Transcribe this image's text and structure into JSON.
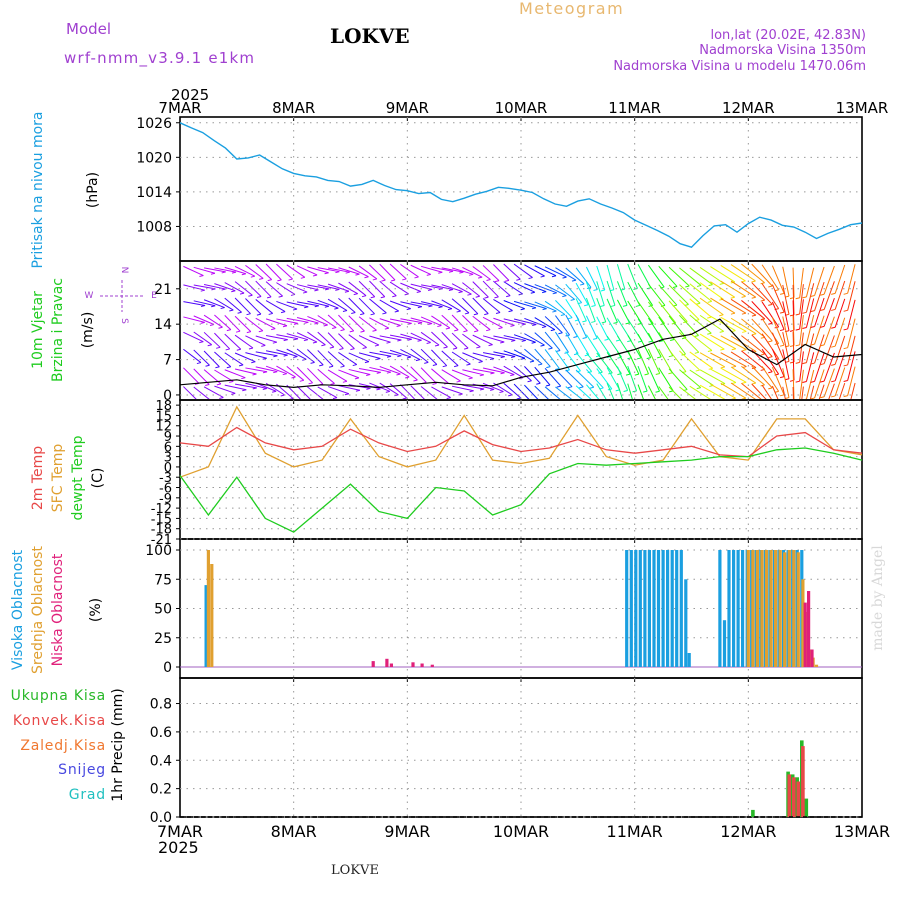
{
  "header": {
    "model_label": "Model",
    "model_name": "wrf-nmm_v3.9.1 e1km",
    "title": "LOKVE",
    "subtitle": "Meteogram",
    "coords": "lon,lat (20.02E, 42.83N)",
    "elevation": "Nadmorska Visina 1350m",
    "model_elevation": "Nadmorska Visina u modelu 1470.06m",
    "watermark": "made by Angel",
    "footer_station": "LOKVE"
  },
  "time_axis": {
    "year": "2025",
    "ticks": [
      "7MAR",
      "8MAR",
      "9MAR",
      "10MAR",
      "11MAR",
      "12MAR",
      "13MAR"
    ]
  },
  "colors": {
    "pressure": "#1a9fe0",
    "temp2m": "#e84848",
    "sfc_temp": "#e0a030",
    "dewpoint": "#1fcc1f",
    "high_cloud": "#1a9fe0",
    "mid_cloud": "#e0a030",
    "low_cloud": "#e0207a",
    "total_precip": "#28b828",
    "conv_precip": "#e84848",
    "frozen": "#f07830",
    "snow": "#4848e0",
    "hail": "#20c0c0",
    "model_text": "#a040d0",
    "meteogram_text": "#e8b870"
  },
  "chart_data": [
    {
      "type": "line",
      "panel": "pressure",
      "ylabel_lines": [
        "Pritisak na nivou mora",
        "(hPa)"
      ],
      "yticks": [
        1008,
        1014,
        1020,
        1026
      ],
      "ylim": [
        1002,
        1027
      ],
      "x_days": [
        0.0,
        0.1,
        0.2,
        0.3,
        0.4,
        0.5,
        0.6,
        0.7,
        0.8,
        0.9,
        1.0,
        1.1,
        1.2,
        1.3,
        1.4,
        1.5,
        1.6,
        1.7,
        1.8,
        1.9,
        2.0,
        2.1,
        2.2,
        2.3,
        2.4,
        2.5,
        2.6,
        2.7,
        2.8,
        2.9,
        3.0,
        3.1,
        3.2,
        3.3,
        3.4,
        3.5,
        3.6,
        3.7,
        3.8,
        3.9,
        4.0,
        4.1,
        4.2,
        4.3,
        4.4,
        4.5,
        4.6,
        4.7,
        4.8,
        4.9,
        5.0,
        5.1,
        5.2,
        5.3,
        5.4,
        5.5,
        5.6,
        5.7,
        5.8,
        5.9,
        6.0
      ],
      "series": [
        {
          "values": [
            1026.0,
            1025.1,
            1024.3,
            1022.9,
            1021.6,
            1019.7,
            1019.9,
            1020.4,
            1019.2,
            1018.0,
            1017.2,
            1016.8,
            1016.6,
            1016.0,
            1015.8,
            1015.0,
            1015.3,
            1016.0,
            1015.1,
            1014.4,
            1014.2,
            1013.7,
            1013.9,
            1012.7,
            1012.3,
            1012.9,
            1013.6,
            1014.1,
            1014.8,
            1014.6,
            1014.3,
            1013.9,
            1012.8,
            1011.9,
            1011.5,
            1012.4,
            1012.8,
            1011.9,
            1011.2,
            1010.4,
            1009.1,
            1008.2,
            1007.3,
            1006.3,
            1005.0,
            1004.4,
            1006.4,
            1008.1,
            1008.3,
            1007.0,
            1008.5,
            1009.6,
            1009.1,
            1008.2,
            1007.9,
            1007.0,
            1005.9,
            1006.8,
            1007.5,
            1008.3,
            1008.6
          ]
        }
      ]
    },
    {
      "type": "line",
      "panel": "wind",
      "ylabel_lines": [
        "10m Vjetar",
        "Brzina i Pravac",
        "(m/s)"
      ],
      "direction_legend": [
        "N",
        "W",
        "E",
        "S"
      ],
      "yticks": [
        0,
        7,
        14,
        21
      ],
      "ylim": [
        -1.0,
        26.5
      ],
      "x_days": [
        0.0,
        0.25,
        0.5,
        0.75,
        1.0,
        1.25,
        1.5,
        1.75,
        2.0,
        2.25,
        2.5,
        2.75,
        3.0,
        3.25,
        3.5,
        3.75,
        4.0,
        4.25,
        4.5,
        4.75,
        5.0,
        5.25,
        5.5,
        5.75,
        6.0
      ],
      "series": [
        {
          "values": [
            2.0,
            2.5,
            3.0,
            2.0,
            1.5,
            2.0,
            1.8,
            1.5,
            2.0,
            2.5,
            2.0,
            1.8,
            3.5,
            4.5,
            6.0,
            7.5,
            9.0,
            11.0,
            12.0,
            15.0,
            9.0,
            6.0,
            10.0,
            7.5,
            8.0
          ]
        }
      ]
    },
    {
      "type": "line",
      "panel": "temperature",
      "ylabel_lines": [
        "2m Temp",
        "SFC Temp",
        "dewpt Temp",
        "(C)"
      ],
      "yticks": [
        -21,
        -18,
        -15,
        -12,
        -9,
        -6,
        -3,
        0,
        3,
        6,
        9,
        12,
        15,
        18
      ],
      "ylim": [
        -21,
        19.5
      ],
      "x_days": [
        0.0,
        0.25,
        0.5,
        0.75,
        1.0,
        1.25,
        1.5,
        1.75,
        2.0,
        2.25,
        2.5,
        2.75,
        3.0,
        3.25,
        3.5,
        3.75,
        4.0,
        4.25,
        4.5,
        4.75,
        5.0,
        5.25,
        5.5,
        5.75,
        6.0
      ],
      "series": [
        {
          "name": "2m Temp",
          "values": [
            7.0,
            6.0,
            11.5,
            7.0,
            5.0,
            6.0,
            11.0,
            7.0,
            4.5,
            6.0,
            10.5,
            6.5,
            4.5,
            5.5,
            8.0,
            5.0,
            4.0,
            5.0,
            6.0,
            3.5,
            3.0,
            9.0,
            10.0,
            5.0,
            4.0
          ]
        },
        {
          "name": "SFC Temp",
          "values": [
            -3.0,
            0.0,
            17.5,
            4.0,
            0.0,
            2.0,
            14.0,
            3.0,
            0.0,
            2.0,
            15.0,
            2.0,
            1.0,
            2.5,
            15.0,
            3.0,
            0.5,
            2.0,
            14.0,
            3.0,
            2.0,
            14.0,
            14.0,
            5.0,
            3.5
          ]
        },
        {
          "name": "dewpt Temp",
          "values": [
            -2.5,
            -14.0,
            -3.0,
            -15.0,
            -19.0,
            -12.0,
            -5.0,
            -13.0,
            -15.0,
            -6.0,
            -7.0,
            -14.0,
            -11.0,
            -2.0,
            1.0,
            0.5,
            1.0,
            1.5,
            2.0,
            3.0,
            3.0,
            5.0,
            5.5,
            4.0,
            2.0
          ]
        }
      ]
    },
    {
      "type": "bar",
      "panel": "clouds",
      "ylabel_lines": [
        "Visoka Oblacnost",
        "Srednja Oblacnost",
        "Niska Oblacnost",
        "(%)"
      ],
      "yticks": [
        0,
        25,
        50,
        75,
        100
      ],
      "ylim": [
        0,
        100
      ],
      "series": [
        {
          "name": "Visoka Oblacnost",
          "x_days": [
            0.23,
            3.93,
            3.97,
            4.01,
            4.05,
            4.09,
            4.13,
            4.17,
            4.21,
            4.25,
            4.29,
            4.33,
            4.37,
            4.41,
            4.45,
            4.48,
            4.75,
            4.79,
            4.83,
            4.87,
            4.91,
            4.95,
            4.99,
            5.03,
            5.07,
            5.11,
            5.15,
            5.19,
            5.23,
            5.27,
            5.31,
            5.35,
            5.39,
            5.43,
            5.47
          ],
          "values": [
            70,
            100,
            100,
            100,
            100,
            100,
            100,
            100,
            100,
            100,
            100,
            100,
            100,
            100,
            75,
            12,
            100,
            40,
            100,
            100,
            100,
            100,
            100,
            100,
            100,
            100,
            100,
            100,
            100,
            100,
            100,
            100,
            100,
            100,
            100
          ]
        },
        {
          "name": "Srednja Oblacnost",
          "x_days": [
            0.25,
            0.28,
            5.0,
            5.04,
            5.08,
            5.12,
            5.16,
            5.2,
            5.24,
            5.28,
            5.32,
            5.36,
            5.4,
            5.44,
            5.48,
            5.51,
            5.54,
            5.57,
            5.6
          ],
          "values": [
            100,
            88,
            100,
            100,
            100,
            100,
            100,
            100,
            100,
            100,
            98,
            100,
            100,
            98,
            75,
            47,
            15,
            8,
            2
          ]
        },
        {
          "name": "Niska Oblacnost",
          "x_days": [
            1.7,
            1.82,
            1.86,
            2.05,
            2.13,
            2.22,
            5.5,
            5.53,
            5.56
          ],
          "values": [
            5,
            7,
            3,
            4,
            3,
            2,
            55,
            65,
            15
          ]
        }
      ]
    },
    {
      "type": "bar",
      "panel": "precip",
      "ylabel_lines": [
        "1hr Precip (mm)"
      ],
      "legend": [
        "Ukupna Kisa",
        "Konvek.Kisa",
        "Zaledj.Kisa",
        "Snijeg",
        "Grad"
      ],
      "yticks": [
        0,
        0.2,
        0.4,
        0.6,
        0.8
      ],
      "ylim": [
        0,
        0.98
      ],
      "series": [
        {
          "name": "Ukupna Kisa",
          "x_days": [
            5.04,
            5.35,
            5.39,
            5.43,
            5.47,
            5.51
          ],
          "values": [
            0.05,
            0.32,
            0.3,
            0.28,
            0.54,
            0.13
          ]
        },
        {
          "name": "Konvek.Kisa",
          "x_days": [
            5.36,
            5.4,
            5.44,
            5.48
          ],
          "values": [
            0.3,
            0.28,
            0.25,
            0.5
          ]
        }
      ]
    }
  ]
}
